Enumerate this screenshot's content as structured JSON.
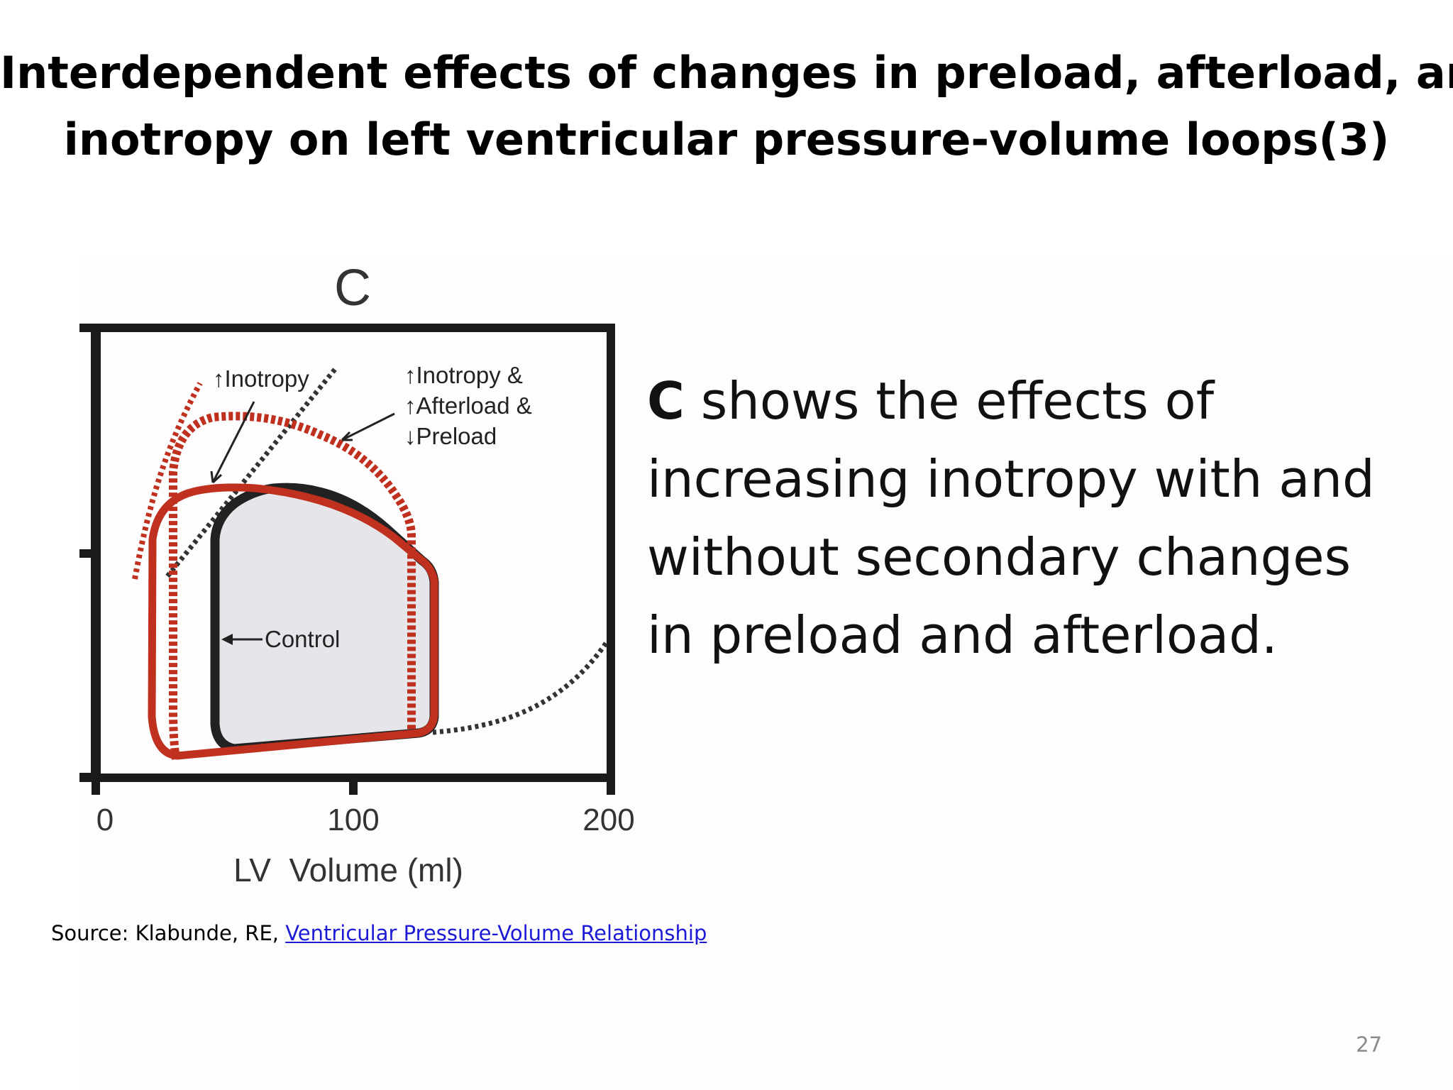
{
  "slide": {
    "title_line1": "Interdependent effects of changes in preload, afterload, and",
    "title_line2": "inotropy on left ventricular pressure-volume loops(3)",
    "body_bold": "C",
    "body_text": " shows the effects of increasing inotropy with and without secondary changes in preload and afterload.",
    "source_prefix": "Source: Klabunde, RE, ",
    "source_link": "Ventricular Pressure-Volume Relationship",
    "slide_number": "27"
  },
  "figure": {
    "panel_letter": "C",
    "labels": {
      "inotropy": "↑Inotropy",
      "combo_line1": "↑Inotropy &",
      "combo_line2": "↑Afterload &",
      "combo_line3": "↓Preload",
      "control": "Control"
    },
    "colors": {
      "control": "#222222",
      "inotropy": "#c0301e",
      "loop_fill": "#e5e5ea"
    }
  },
  "chart_data": {
    "type": "line",
    "title": "C",
    "xlabel": "LV  Volume (ml)",
    "ylabel": "",
    "xlim": [
      0,
      200
    ],
    "x_ticks": [
      "0",
      "100",
      "200"
    ],
    "series": [
      {
        "name": "Control",
        "style": "solid-black"
      },
      {
        "name": "↑Inotropy",
        "style": "solid-red"
      },
      {
        "name": "↑Inotropy & ↑Afterload & ↓Preload",
        "style": "dashed-red"
      }
    ]
  }
}
